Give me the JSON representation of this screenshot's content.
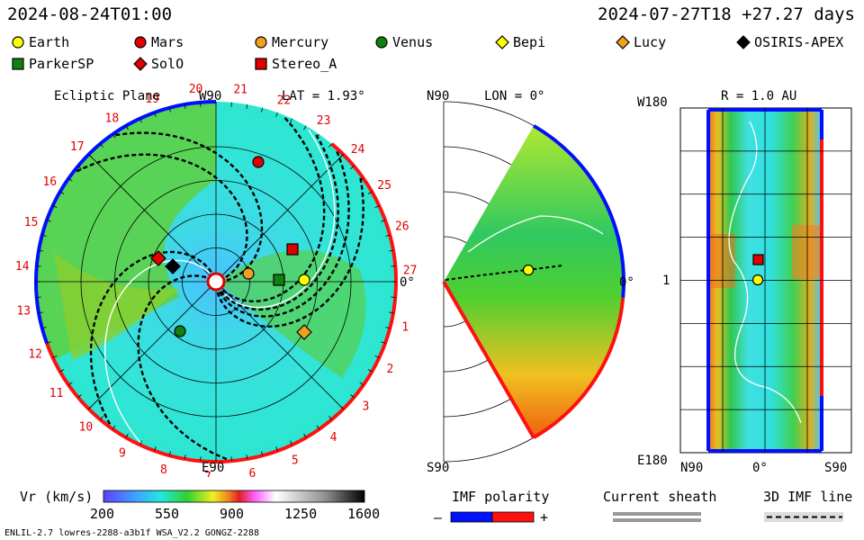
{
  "header": {
    "current_time": "2024-08-24T01:00",
    "model_run": "2024-07-27T18 +27.27 days"
  },
  "legend": [
    {
      "name": "Earth",
      "marker": "circle",
      "color": "#ffff00"
    },
    {
      "name": "Mars",
      "marker": "circle",
      "color": "#e00000"
    },
    {
      "name": "Mercury",
      "marker": "circle",
      "color": "#f0a020"
    },
    {
      "name": "Venus",
      "marker": "circle",
      "color": "#108010"
    },
    {
      "name": "Bepi",
      "marker": "diamond",
      "color": "#ffff00"
    },
    {
      "name": "Lucy",
      "marker": "diamond",
      "color": "#f0a020"
    },
    {
      "name": "OSIRIS-APEX",
      "marker": "diamond",
      "color": "#000000"
    },
    {
      "name": "ParkerSP",
      "marker": "square",
      "color": "#108010"
    },
    {
      "name": "SolO",
      "marker": "diamond",
      "color": "#e00000"
    },
    {
      "name": "Stereo_A",
      "marker": "square",
      "color": "#e00000"
    }
  ],
  "panels": {
    "ecliptic": {
      "title": "Ecliptic Plane",
      "lat_label": "LAT = 1.93°",
      "top_label": "W90",
      "bottom_label": "E90",
      "right_label": "0°"
    },
    "meridional": {
      "top_label": "N90",
      "lon_label": "LON = 0°",
      "bottom_label": "S90",
      "right_label": "0°"
    },
    "map": {
      "r_label": "R = 1.0 AU",
      "top_left_label": "W180",
      "mid_left_label": "1",
      "bottom_left_label": "E180",
      "x_left": "N90",
      "x_mid": "0°",
      "x_right": "S90"
    }
  },
  "chart_data": [
    {
      "type": "heatmap",
      "title": "Ecliptic Plane",
      "quantity": "Vr (km/s)",
      "carrington_ticks": [
        "1",
        "2",
        "3",
        "4",
        "5",
        "6",
        "7",
        "8",
        "9",
        "10",
        "11",
        "12",
        "13",
        "14",
        "15",
        "16",
        "17",
        "18",
        "19",
        "20",
        "21",
        "22",
        "23",
        "24",
        "25",
        "26",
        "27"
      ],
      "bodies_shown": [
        "Earth",
        "Mars",
        "Mercury",
        "Venus",
        "Lucy",
        "OSIRIS-APEX",
        "ParkerSP",
        "SolO",
        "Stereo_A"
      ]
    },
    {
      "type": "heatmap",
      "title": "LON = 0°",
      "quantity": "Vr (km/s)",
      "bodies_shown": [
        "Earth"
      ]
    },
    {
      "type": "heatmap",
      "title": "R = 1.0 AU",
      "quantity": "Vr (km/s)",
      "bodies_shown": [
        "Earth",
        "Stereo_A"
      ]
    }
  ],
  "colorbar": {
    "label": "Vr (km/s)",
    "ticks": [
      "200",
      "550",
      "900",
      "1250",
      "1600"
    ],
    "range": [
      200,
      1600
    ]
  },
  "imf": {
    "polarity_label": "IMF polarity",
    "minus": "–",
    "plus": "+",
    "current_sheath_label": "Current sheath",
    "imf_line_label": "3D IMF line",
    "polarity_colors": [
      "#0010ff",
      "#ff1010"
    ]
  },
  "footer": {
    "left": "ENLIL-2.7 lowres-2288-a3b1f WSA_V2.2 GONGZ-2288"
  }
}
